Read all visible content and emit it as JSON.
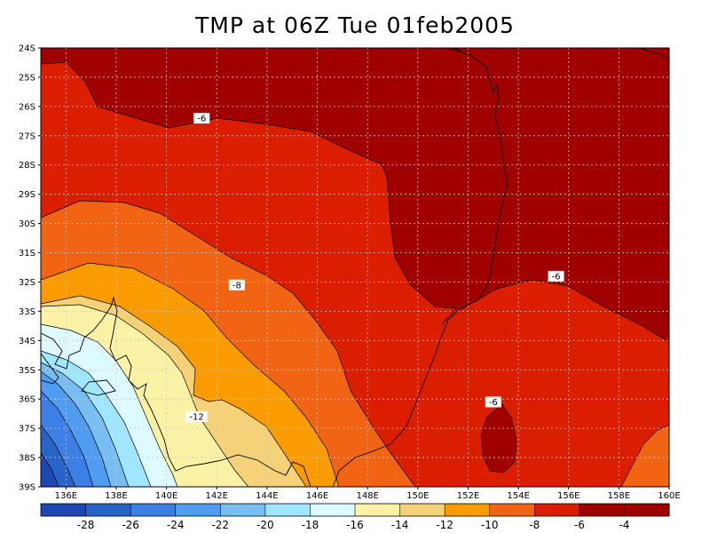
{
  "title": "TMP at 06Z Tue 01feb2005",
  "map": {
    "lat_labels": [
      "24S",
      "25S",
      "26S",
      "27S",
      "28S",
      "29S",
      "30S",
      "31S",
      "32S",
      "33S",
      "34S",
      "35S",
      "36S",
      "37S",
      "38S",
      "39S"
    ],
    "lon_labels": [
      "136E",
      "138E",
      "140E",
      "142E",
      "144E",
      "146E",
      "148E",
      "150E",
      "152E",
      "154E",
      "156E",
      "158E",
      "160E"
    ],
    "lat_range": [
      -39,
      -24
    ],
    "lon_range": [
      135,
      160
    ],
    "grid": true,
    "contour_labels": [
      {
        "text": "-6",
        "lon": 141.4,
        "lat": -26.4
      },
      {
        "text": "-8",
        "lon": 142.8,
        "lat": -32.1
      },
      {
        "text": "-12",
        "lon": 141.2,
        "lat": -36.6
      },
      {
        "text": "-6",
        "lon": 155.5,
        "lat": -31.8
      },
      {
        "text": "-6",
        "lon": 153.0,
        "lat": -36.1
      }
    ],
    "colors": {
      "gt-4": "#a00000",
      "-6_-4": "#a00000",
      "-8_-6": "#dc1e00",
      "-10_-8": "#f06414",
      "-12_-10": "#fa9b00",
      "-14_-12": "#f5d278",
      "-16_-14": "#fcf2a6",
      "-18_-16": "#dcfaff",
      "-20_-18": "#a0e6ff",
      "-22_-20": "#78bef0",
      "-24_-22": "#509cf0",
      "-26_-24": "#3c80e6",
      "-28_-26": "#2864c8",
      "lt-28": "#1e46b4"
    }
  },
  "colorbar": {
    "labels": [
      "-28",
      "-26",
      "-24",
      "-22",
      "-20",
      "-18",
      "-16",
      "-14",
      "-12",
      "-10",
      "-8",
      "-6",
      "-4"
    ],
    "colors": [
      "#1e46b4",
      "#2864c8",
      "#3c80e6",
      "#509cf0",
      "#78bef0",
      "#a0e6ff",
      "#dcfaff",
      "#fcf2a6",
      "#f5d278",
      "#fa9b00",
      "#f06414",
      "#dc1e00",
      "#a00000",
      "#a00000"
    ]
  }
}
